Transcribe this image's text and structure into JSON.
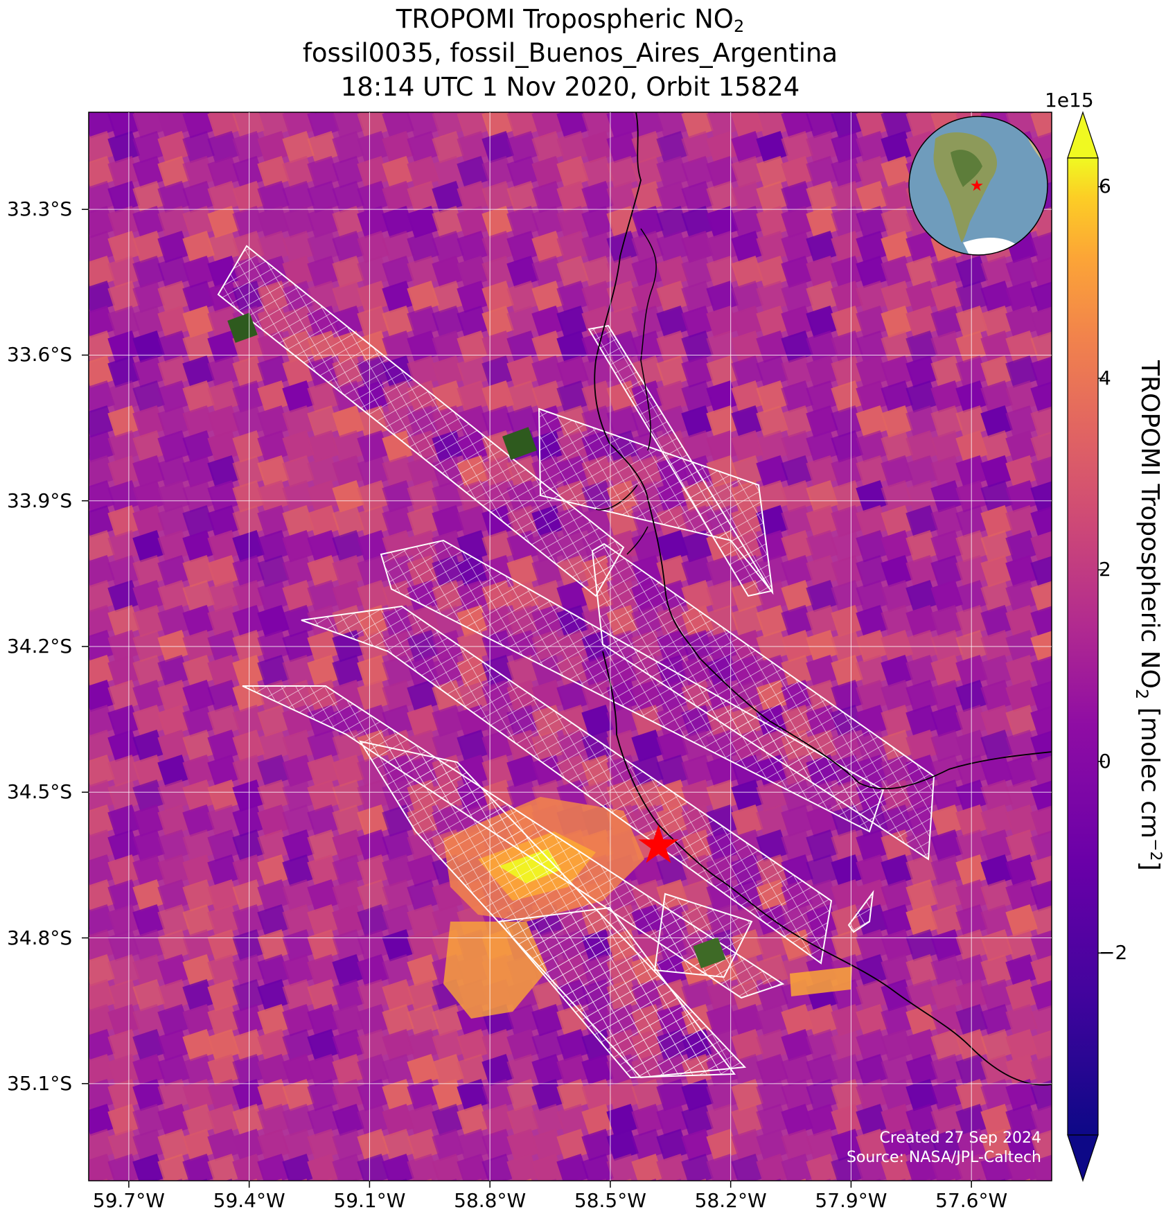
{
  "title": {
    "line1_main": "TROPOMI Tropospheric NO",
    "line1_sub": "2",
    "line2": "fossil0035, fossil_Buenos_Aires_Argentina",
    "line3": "18:14 UTC 1 Nov 2020, Orbit 15824"
  },
  "axes": {
    "lat_labels": [
      "33.3°S",
      "33.6°S",
      "33.9°S",
      "34.2°S",
      "34.5°S",
      "34.8°S",
      "35.1°S"
    ],
    "lon_labels": [
      "59.7°W",
      "59.4°W",
      "59.1°W",
      "58.8°W",
      "58.5°W",
      "58.2°W",
      "57.9°W",
      "57.6°W"
    ],
    "lat_ticks": [
      -33.3,
      -33.6,
      -33.9,
      -34.2,
      -34.5,
      -34.8,
      -35.1
    ],
    "lon_ticks": [
      -59.7,
      -59.4,
      -59.1,
      -58.8,
      -58.5,
      -58.2,
      -57.9,
      -57.6
    ],
    "lat_range": [
      -35.3,
      -33.1
    ],
    "lon_range": [
      -59.8,
      -57.4
    ],
    "grid": true
  },
  "colorbar": {
    "exponent": "1e15",
    "ticks": [
      "6",
      "4",
      "2",
      "0",
      "−2"
    ],
    "tick_values": [
      6,
      4,
      2,
      0,
      -2
    ],
    "range": [
      -3.9,
      6.3
    ],
    "colormap": "plasma",
    "extend": "both",
    "label_main": "TROPOMI Tropospheric NO",
    "label_sub": "2",
    "label_unit": " [molec cm",
    "label_sup": "−2",
    "label_end": "]"
  },
  "colors": {
    "map_base": "#b0359a",
    "grid_lines": "#ffffff",
    "coastline": "#000000",
    "overlay_grid": "#ffffff",
    "marker": "#ff0000",
    "ocean_inset": "#6f9cbc"
  },
  "marker": {
    "label": "site-star",
    "lat": -34.61,
    "lon": -58.38
  },
  "credits": {
    "line1": "Created 27 Sep 2024",
    "line2": "Source: NASA/JPL-Caltech"
  }
}
